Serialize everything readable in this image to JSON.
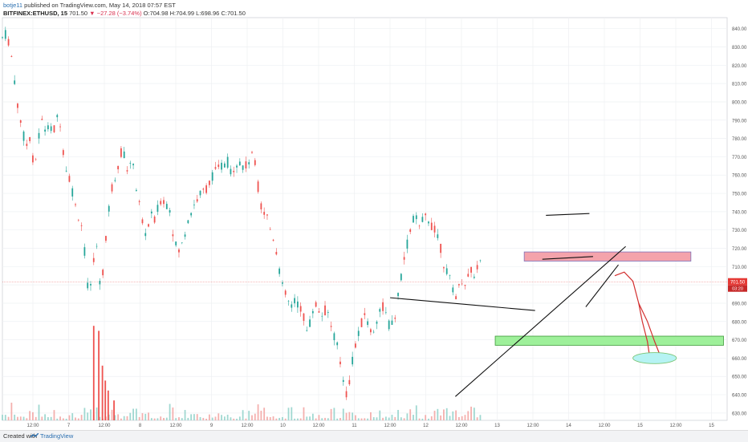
{
  "header": {
    "author": "botje11",
    "published": "published on TradingView.com, May 14, 2018 07:57 EST",
    "symbol": "BITFINEX:ETHUSD, 15",
    "last": "701.50",
    "change": "−27.28 (−3.74%)",
    "open": "O:704.98",
    "high": "H:704.99",
    "low": "L:698.96",
    "close": "C:701.50"
  },
  "footer": {
    "created_with": "Created with",
    "brand": "TradingView"
  },
  "colors": {
    "up": "#26a69a",
    "down": "#ef5350",
    "resistance_zone": "#f4a3ab",
    "support_zone": "#9ef09a",
    "target_ellipse": "#b6f3f3",
    "price_marker": "#e53935"
  },
  "chart_data": {
    "type": "candlestick",
    "x_ticks": [
      "12:00",
      "7",
      "12:00",
      "8",
      "12:00",
      "9",
      "12:00",
      "10",
      "12:00",
      "11",
      "12:00",
      "12",
      "12:00",
      "13",
      "12:00",
      "14",
      "12:00",
      "15",
      "12:00",
      "15"
    ],
    "y_ticks": [
      630,
      640,
      650,
      660,
      670,
      680,
      690,
      700,
      710,
      720,
      730,
      740,
      750,
      760,
      770,
      780,
      790,
      800,
      810,
      820,
      830,
      840
    ],
    "y_tick_labels": [
      "630.00",
      "640.00",
      "650.00",
      "660.00",
      "670.00",
      "680.00",
      "690.00",
      "700.00",
      "710.00",
      "720.00",
      "730.00",
      "740.00",
      "750.00",
      "760.00",
      "770.00",
      "780.00",
      "790.00",
      "800.00",
      "810.00",
      "820.00",
      "830.00",
      "840.00"
    ],
    "ylim": [
      626,
      846
    ],
    "grid": true,
    "current_price": 701.5,
    "current_price_label": "701.50",
    "countdown_label": "03:20",
    "price_path_x": [
      0,
      0.3,
      1.0,
      1.6,
      2.0,
      2.5,
      3.0,
      3.3,
      3.7,
      4.0,
      4.5,
      4.9,
      5.4,
      5.8,
      6.3,
      7.0,
      7.4,
      7.9,
      8.5,
      9.0,
      9.4,
      9.9,
      10.3,
      10.8,
      11.2,
      11.6,
      12.1,
      12.5,
      12.8,
      13.2,
      13.5,
      13.8,
      14.2,
      14.5,
      14.8,
      15.2,
      15.6,
      15.9,
      16.2,
      16.6,
      17.0,
      17.4,
      17.7,
      18.0,
      18.5,
      19.0,
      19.5,
      20.0,
      20.5,
      21.0,
      21.5,
      22.0,
      22.5,
      23.0,
      23.5,
      24.0,
      24.5,
      25.0,
      25.5,
      26.0,
      26.5,
      27.0,
      27.5,
      28.0,
      28.5,
      29.0,
      29.5,
      30.0,
      30.5,
      31.0,
      31.5,
      32.0,
      32.5,
      33.0,
      33.5,
      34.0,
      34.5,
      35.0,
      35.5,
      36.0,
      36.5,
      37.0,
      37.5,
      38.0,
      38.5,
      39.0,
      39.5,
      40.0,
      40.5,
      41.0,
      41.5,
      42.0,
      42.5,
      43.0,
      43.5,
      44.0,
      44.5,
      45.0,
      45.5,
      46.0,
      46.5,
      47.0,
      47.5,
      48.0,
      48.5,
      49.0,
      49.5,
      50.0,
      50.5,
      51.0,
      51.5,
      52.0,
      52.5,
      53.0,
      53.5,
      54.0,
      54.5,
      55.0,
      55.5,
      56.0,
      56.5,
      57.0,
      57.5,
      58.0,
      58.5,
      59.0,
      59.5,
      60.0,
      60.5,
      61.0,
      61.5,
      62.0,
      62.5,
      63.0,
      63.5,
      64.0,
      64.5,
      65.0,
      65.5,
      66.0,
      66.5,
      67.0,
      67.5,
      68.0,
      68.5,
      69.0,
      69.5,
      70.0,
      70.5,
      71.0,
      71.5,
      72.0,
      72.5,
      73.0,
      73.5,
      74.0,
      74.5,
      75.0,
      75.5,
      76.0,
      76.5,
      77.0,
      77.5,
      78.0,
      78.5,
      79.0,
      79.5,
      80.0,
      80.5,
      81.0,
      81.5,
      82.0,
      82.5,
      83.0,
      83.5,
      84.0,
      84.5,
      85.0,
      85.5,
      86.0,
      86.5,
      87.0,
      87.5,
      88.0,
      88.5,
      89.0,
      89.5,
      90.0,
      90.5,
      91.0,
      91.5,
      92.0,
      92.5,
      93.0,
      93.5,
      94.0,
      94.5,
      95.0,
      95.5,
      96.0,
      96.5,
      97.0,
      97.5,
      98.0,
      98.5,
      99.0,
      99.5,
      100
    ],
    "price_path_y": [
      835,
      838,
      832,
      815,
      800,
      790,
      780,
      775,
      785,
      770,
      765,
      778,
      790,
      785,
      788,
      782,
      790,
      792,
      770,
      760,
      758,
      745,
      740,
      735,
      728,
      700,
      695,
      710,
      725,
      715,
      700,
      705,
      720,
      735,
      745,
      755,
      760,
      765,
      770,
      775,
      768,
      760,
      765,
      770,
      752,
      742,
      728,
      730,
      738,
      735,
      742,
      748,
      744,
      745,
      730,
      720,
      718,
      725,
      735,
      740,
      744,
      748,
      750,
      752,
      755,
      760,
      762,
      764,
      766,
      768,
      762,
      765,
      768,
      766,
      764,
      768,
      770,
      765,
      745,
      740,
      738,
      730,
      725,
      715,
      700,
      695,
      690,
      688,
      692,
      688,
      684,
      675,
      680,
      690,
      688,
      683,
      686,
      684,
      675,
      670,
      660,
      650,
      640,
      650,
      665,
      670,
      678,
      685,
      678,
      672,
      680,
      685,
      688,
      683,
      676,
      680,
      690,
      705,
      715,
      725,
      735,
      738,
      730,
      735,
      738,
      735,
      730,
      728,
      720,
      710,
      705,
      700,
      694,
      698,
      704,
      700,
      708,
      705,
      710,
      712,
      701.5,
      701.5,
      701.5,
      701.5,
      701.5,
      701.5,
      701.5,
      701.5,
      701.5,
      701.5,
      701.5,
      701.5,
      701.5,
      701.5,
      701.5,
      701.5,
      701.5,
      701.5,
      701.5,
      701.5,
      701.5,
      701.5,
      701.5,
      701.5,
      701.5,
      701.5,
      701.5,
      701.5,
      701.5,
      701.5,
      701.5,
      701.5,
      701.5,
      701.5,
      701.5,
      701.5,
      701.5,
      701.5,
      701.5,
      701.5,
      701.5,
      701.5,
      701.5,
      701.5,
      701.5,
      701.5,
      701.5,
      701.5,
      701.5,
      701.5,
      701.5,
      701.5,
      701.5,
      701.5,
      701.5,
      701.5,
      701.5,
      701.5,
      701.5,
      701.5,
      701.5,
      701.5,
      701.5,
      701.5,
      701.5,
      701.5,
      701.5
    ],
    "price_path_note_end_index": 140,
    "zones": [
      {
        "kind": "resistance",
        "y_low": 713,
        "y_high": 718,
        "x_start": 72.0,
        "x_end": 95.0
      },
      {
        "kind": "support",
        "y_low": 667,
        "y_high": 672,
        "x_start": 68.0,
        "x_end": 99.5
      }
    ],
    "trendlines": [
      {
        "x1": 53.5,
        "y1": 693,
        "x2": 73.5,
        "y2": 686
      },
      {
        "x1": 62.5,
        "y1": 639,
        "x2": 86.0,
        "y2": 721
      },
      {
        "x1": 75.0,
        "y1": 738,
        "x2": 81.0,
        "y2": 739
      },
      {
        "x1": 74.5,
        "y1": 714,
        "x2": 81.5,
        "y2": 715.5
      },
      {
        "x1": 80.5,
        "y1": 688,
        "x2": 85.0,
        "y2": 711
      }
    ],
    "projection": {
      "path": [
        [
          84.5,
          705
        ],
        [
          85.8,
          707
        ],
        [
          87.0,
          702
        ],
        [
          87.8,
          690
        ],
        [
          88.3,
          680
        ],
        [
          89.0,
          669
        ],
        [
          89.3,
          661
        ]
      ],
      "path2": [
        [
          87.8,
          690
        ],
        [
          89.0,
          680
        ],
        [
          90.0,
          669
        ],
        [
          90.8,
          661
        ]
      ],
      "target": {
        "cx": 90.0,
        "cy": 660,
        "rx": 3.0,
        "ry": 3.0
      }
    },
    "volume_spikes_x": [
      12.6,
      13.3,
      13.8,
      14.2,
      14.6,
      15.4
    ],
    "volume_spikes_h": [
      0.95,
      0.9,
      0.55,
      0.4,
      0.3,
      0.2
    ]
  }
}
